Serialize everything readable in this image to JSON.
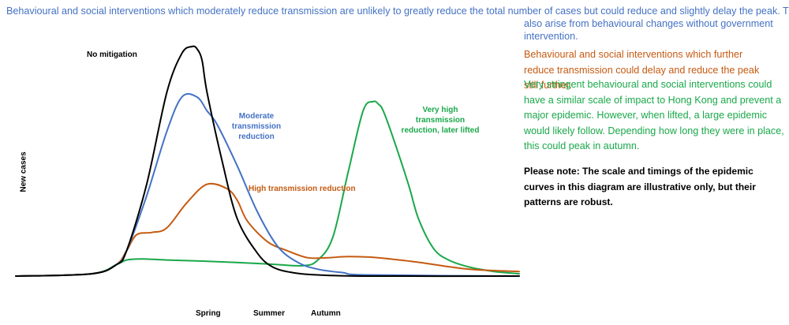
{
  "text": {
    "blue_line1": "Behavioural and social interventions which moderately reduce transmission are unlikely to greatly reduce the total number of cases but could reduce and slightly delay the peak. This scenario may",
    "blue_line2": "also arise from behavioural changes without government",
    "blue_line3": "intervention.",
    "orange": "Behavioural and social interventions which further reduce transmission could delay and reduce the peak still further.",
    "green": "Very stringent behavioural and social interventions could have a similar scale of impact to Hong Kong and prevent a major epidemic. However, when lifted, a large epidemic would likely follow. Depending how long they were in place, this could peak in autumn.",
    "note": "Please note: The scale and timings of the epidemic curves in this diagram are illustrative only, but their patterns are robust."
  },
  "colors": {
    "blue": "#4472c4",
    "orange": "#c55a11",
    "green": "#1aa84a",
    "black": "#000000"
  },
  "chart_data": {
    "type": "line",
    "title": "",
    "xlabel": "",
    "ylabel": "New cases",
    "x_tick_labels": [
      "Spring",
      "Summer",
      "Autumn"
    ],
    "grid": false,
    "legend": "none",
    "xlim": [
      0,
      100
    ],
    "ylim": [
      0,
      100
    ],
    "annotations": [
      {
        "series": "No mitigation",
        "text": "No mitigation"
      },
      {
        "series": "Moderate transmission reduction",
        "text": "Moderate transmission reduction"
      },
      {
        "series": "High transmission reduction",
        "text": "High transmission reduction"
      },
      {
        "series": "Very high transmission reduction, later lifted",
        "text": "Very high transmission reduction, later lifted"
      }
    ],
    "series": [
      {
        "name": "No mitigation",
        "color": "#000000",
        "x": [
          0,
          15,
          20,
          22,
          26,
          30,
          33,
          35,
          36,
          37,
          38,
          41,
          44,
          48,
          51,
          55,
          60,
          70,
          100
        ],
        "y": [
          0,
          1,
          5,
          11,
          40,
          80,
          97,
          100,
          99,
          94,
          80,
          50,
          25,
          10,
          4,
          1.5,
          0.5,
          0,
          0
        ]
      },
      {
        "name": "Moderate transmission reduction",
        "color": "#4472c4",
        "x": [
          0,
          15,
          20,
          22,
          26,
          30,
          33,
          36,
          38,
          40,
          44,
          48,
          52,
          56,
          60,
          65,
          70,
          100
        ],
        "y": [
          0,
          1,
          5,
          11,
          35,
          63,
          78,
          78,
          72,
          66,
          48,
          28,
          13,
          6,
          3,
          1.5,
          0.5,
          0
        ]
      },
      {
        "name": "High transmission reduction",
        "color": "#c55a11",
        "x": [
          0,
          15,
          20,
          22,
          24,
          27,
          30,
          34,
          38,
          42,
          44,
          46,
          50,
          54,
          58,
          62,
          66,
          72,
          80,
          90,
          100
        ],
        "y": [
          0,
          1,
          5,
          11,
          18,
          19,
          21,
          32,
          40,
          38,
          33,
          24,
          15,
          11,
          8,
          8,
          8.5,
          8,
          6,
          3,
          2
        ]
      },
      {
        "name": "Very high transmission reduction, later lifted",
        "color": "#1aa84a",
        "x": [
          0,
          15,
          20,
          22,
          25,
          30,
          40,
          50,
          57,
          60,
          63,
          66,
          69,
          71,
          72,
          73,
          75,
          78,
          80,
          83,
          86,
          90,
          95,
          100
        ],
        "y": [
          0,
          1,
          5,
          7,
          7.5,
          7,
          6.3,
          5.3,
          4.5,
          7,
          17,
          45,
          72,
          76,
          75,
          72,
          60,
          40,
          25,
          12,
          7,
          4,
          2,
          1
        ]
      }
    ]
  }
}
